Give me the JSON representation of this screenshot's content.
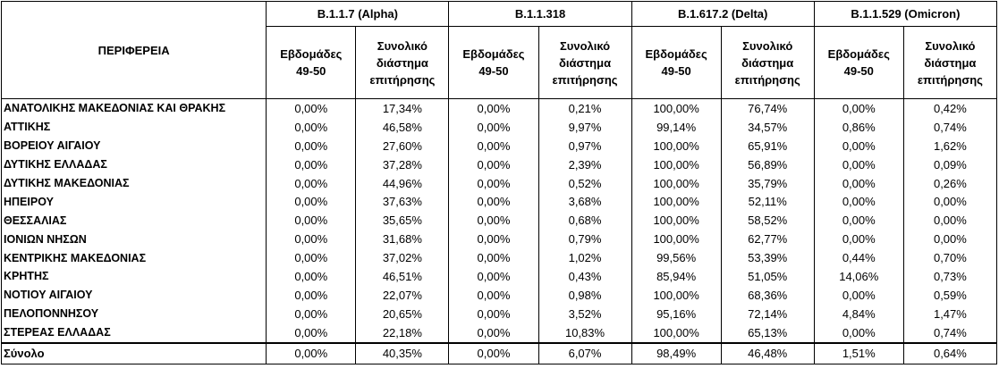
{
  "header": {
    "region_label": "ΠΕΡΙΦΕΡΕΙΑ",
    "variants": [
      "B.1.1.7 (Alpha)",
      "B.1.1.318",
      "B.1.617.2 (Delta)",
      "B.1.1.529 (Omicron)"
    ],
    "sub_weeks": [
      "Εβδομάδες",
      "49-50"
    ],
    "sub_total": [
      "Συνολικό",
      "διάστημα",
      "επιτήρησης"
    ]
  },
  "rows": [
    {
      "region": "ΑΝΑΤΟΛΙΚΗΣ ΜΑΚΕΔΟΝΙΑΣ ΚΑΙ ΘΡΑΚΗΣ",
      "values": [
        "0,00%",
        "17,34%",
        "0,00%",
        "0,21%",
        "100,00%",
        "76,74%",
        "0,00%",
        "0,42%"
      ]
    },
    {
      "region": "ΑΤΤΙΚΗΣ",
      "values": [
        "0,00%",
        "46,58%",
        "0,00%",
        "9,97%",
        "99,14%",
        "34,57%",
        "0,86%",
        "0,74%"
      ]
    },
    {
      "region": "ΒΟΡΕΙΟΥ ΑΙΓΑΙΟΥ",
      "values": [
        "0,00%",
        "27,60%",
        "0,00%",
        "0,97%",
        "100,00%",
        "65,91%",
        "0,00%",
        "1,62%"
      ]
    },
    {
      "region": "ΔΥΤΙΚΗΣ ΕΛΛΑΔΑΣ",
      "values": [
        "0,00%",
        "37,28%",
        "0,00%",
        "2,39%",
        "100,00%",
        "56,89%",
        "0,00%",
        "0,09%"
      ]
    },
    {
      "region": "ΔΥΤΙΚΗΣ ΜΑΚΕΔΟΝΙΑΣ",
      "values": [
        "0,00%",
        "44,96%",
        "0,00%",
        "0,52%",
        "100,00%",
        "35,79%",
        "0,00%",
        "0,26%"
      ]
    },
    {
      "region": "ΗΠΕΙΡΟΥ",
      "values": [
        "0,00%",
        "37,63%",
        "0,00%",
        "3,68%",
        "100,00%",
        "52,11%",
        "0,00%",
        "0,00%"
      ]
    },
    {
      "region": "ΘΕΣΣΑΛΙΑΣ",
      "values": [
        "0,00%",
        "35,65%",
        "0,00%",
        "0,68%",
        "100,00%",
        "58,52%",
        "0,00%",
        "0,00%"
      ]
    },
    {
      "region": "ΙΟΝΙΩΝ ΝΗΣΩΝ",
      "values": [
        "0,00%",
        "31,68%",
        "0,00%",
        "0,79%",
        "100,00%",
        "62,77%",
        "0,00%",
        "0,00%"
      ]
    },
    {
      "region": "ΚΕΝΤΡΙΚΗΣ ΜΑΚΕΔΟΝΙΑΣ",
      "values": [
        "0,00%",
        "37,02%",
        "0,00%",
        "1,02%",
        "99,56%",
        "53,39%",
        "0,44%",
        "0,70%"
      ]
    },
    {
      "region": "ΚΡΗΤΗΣ",
      "values": [
        "0,00%",
        "46,51%",
        "0,00%",
        "0,43%",
        "85,94%",
        "51,05%",
        "14,06%",
        "0,73%"
      ]
    },
    {
      "region": "ΝΟΤΙΟΥ ΑΙΓΑΙΟΥ",
      "values": [
        "0,00%",
        "22,07%",
        "0,00%",
        "0,98%",
        "100,00%",
        "68,36%",
        "0,00%",
        "0,59%"
      ]
    },
    {
      "region": "ΠΕΛΟΠΟΝΝΗΣΟΥ",
      "values": [
        "0,00%",
        "20,65%",
        "0,00%",
        "3,52%",
        "95,16%",
        "72,14%",
        "4,84%",
        "1,47%"
      ]
    },
    {
      "region": "ΣΤΕΡΕΑΣ ΕΛΛΑΔΑΣ",
      "values": [
        "0,00%",
        "22,18%",
        "0,00%",
        "10,83%",
        "100,00%",
        "65,13%",
        "0,00%",
        "0,74%"
      ]
    }
  ],
  "total": {
    "region": "Σύνολο",
    "values": [
      "0,00%",
      "40,35%",
      "0,00%",
      "6,07%",
      "98,49%",
      "46,48%",
      "1,51%",
      "0,64%"
    ]
  }
}
